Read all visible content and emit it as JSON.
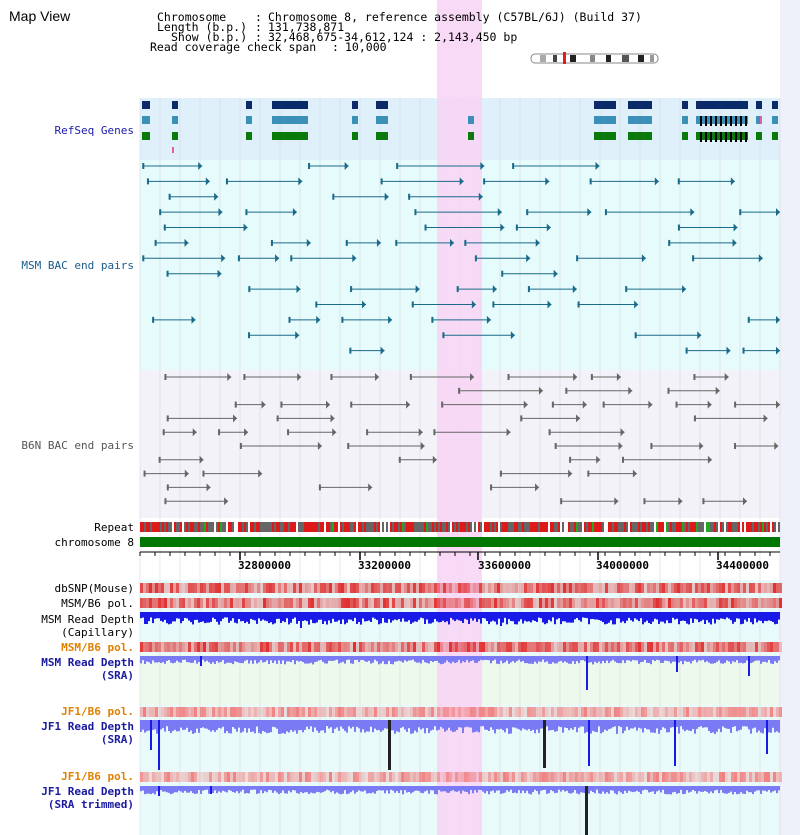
{
  "title": "Map View",
  "info": {
    "chromosome_key": "Chromosome",
    "chromosome_val": "Chromosome 8, reference assembly (C57BL/6J) (Build 37)",
    "length_key": "Length (b.p.)",
    "length_val": "131,738,871",
    "show_key": "Show (b.p.)",
    "show_val": "32,468,675-34,612,124 : 2,143,450 bp",
    "span_key": "Read coverage check span",
    "span_val": "10,000"
  },
  "tracks": {
    "refseq": "RefSeq Genes",
    "msm_bac": "MSM BAC end pairs",
    "b6n_bac": "B6N BAC end pairs",
    "repeat": "Repeat",
    "chromosome": "chromosome 8",
    "dbsnp": "dbSNP(Mouse)",
    "msm_b6_pol": "MSM/B6 pol.",
    "msm_read_cap_1": "MSM Read Depth",
    "msm_read_cap_2": "(Capillary)",
    "msm_b6_pol2": "MSM/B6 pol.",
    "msm_read_sra_1": "MSM Read Depth",
    "msm_read_sra_2": "(SRA)",
    "jf1_b6_pol": "JF1/B6 pol.",
    "jf1_read_sra_1": "JF1 Read Depth",
    "jf1_read_sra_2": "(SRA)",
    "jf1_b6_pol2": "JF1/B6 pol.",
    "jf1_read_trim_1": "JF1 Read Depth",
    "jf1_read_trim_2": "(SRA trimmed)"
  },
  "axis_ticks": [
    "32800000",
    "33200000",
    "33600000",
    "34000000",
    "34400000"
  ],
  "colors": {
    "highlight": "#f8d4f4",
    "refseq_bg": "#dff0fb",
    "msm_bg": "#e6fbfb",
    "b6n_bg": "#f2f2f8",
    "chromosome_bar": "#007700",
    "depth_blue": "#1a1ae8",
    "depth_light": "#7a7af4",
    "pol_red": "#e03030"
  }
}
